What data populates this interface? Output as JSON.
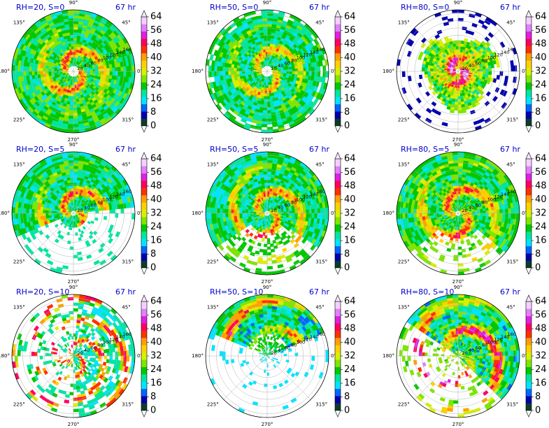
{
  "figure": {
    "panels": [
      {
        "id": "p1",
        "title": "RH=20, S=0",
        "time": "67 hr"
      },
      {
        "id": "p2",
        "title": "RH=50, S=0",
        "time": "67 hr"
      },
      {
        "id": "p3",
        "title": "RH=80, S=0",
        "time": "67 hr"
      },
      {
        "id": "p4",
        "title": "RH=20, S=5",
        "time": "67 hr"
      },
      {
        "id": "p5",
        "title": "RH=50, S=5",
        "time": "67 hr"
      },
      {
        "id": "p6",
        "title": "RH=80, S=5",
        "time": "67 hr"
      },
      {
        "id": "p7",
        "title": "RH=20, S=10",
        "time": "67 hr"
      },
      {
        "id": "p8",
        "title": "RH=50, S=10",
        "time": "67 hr"
      },
      {
        "id": "p9",
        "title": "RH=80, S=10",
        "time": "67 hr"
      }
    ],
    "angle_labels": [
      "0°",
      "45°",
      "90°",
      "135°",
      "180°",
      "225°",
      "270°",
      "315°"
    ],
    "radial_labels": [
      "20",
      "40",
      "60",
      "80",
      "100",
      "120",
      "140",
      "160"
    ],
    "colorbar_ticks": [
      "0",
      "8",
      "16",
      "24",
      "32",
      "40",
      "48",
      "56",
      "64"
    ],
    "colorbar_colors": [
      "#0a3d2a",
      "#0000b0",
      "#0066ff",
      "#00e5ff",
      "#00e6a0",
      "#00c800",
      "#7ee600",
      "#d8f000",
      "#ffd000",
      "#ffa000",
      "#ff3000",
      "#ff0060",
      "#e020e0",
      "#e080ff",
      "#f5d0ff"
    ]
  },
  "chart_data": [
    {
      "type": "heatmap",
      "projection": "polar",
      "title": "RH=20, S=0",
      "time_label": "67 hr",
      "radial_ticks": [
        20,
        40,
        60,
        80,
        100,
        120,
        140,
        160
      ],
      "angle_ticks_deg": [
        0,
        45,
        90,
        135,
        180,
        225,
        270,
        315
      ],
      "colorbar": {
        "min": 0,
        "max": 64,
        "ticks": [
          0,
          8,
          16,
          24,
          32,
          40,
          48,
          56,
          64
        ]
      },
      "coverage": "full disk",
      "eye_radius": 18,
      "peak_value": 48
    },
    {
      "type": "heatmap",
      "projection": "polar",
      "title": "RH=50, S=0",
      "time_label": "67 hr",
      "radial_ticks": [
        20,
        40,
        60,
        80,
        100,
        120,
        140,
        160
      ],
      "angle_ticks_deg": [
        0,
        45,
        90,
        135,
        180,
        225,
        270,
        315
      ],
      "colorbar": {
        "min": 0,
        "max": 64,
        "ticks": [
          0,
          8,
          16,
          24,
          32,
          40,
          48,
          56,
          64
        ]
      },
      "coverage": "full disk",
      "eye_radius": 14,
      "peak_value": 44
    },
    {
      "type": "heatmap",
      "projection": "polar",
      "title": "RH=80, S=0",
      "time_label": "67 hr",
      "radial_ticks": [
        20,
        40,
        60,
        80,
        100,
        120,
        140,
        160
      ],
      "angle_ticks_deg": [
        0,
        45,
        90,
        135,
        180,
        225,
        270,
        315
      ],
      "colorbar": {
        "min": 0,
        "max": 64,
        "ticks": [
          0,
          8,
          16,
          24,
          32,
          40,
          48,
          56,
          64
        ]
      },
      "coverage": "inner ~110 km",
      "eye_radius": 8,
      "peak_value": 60
    },
    {
      "type": "heatmap",
      "projection": "polar",
      "title": "RH=20, S=5",
      "time_label": "67 hr",
      "radial_ticks": [
        20,
        40,
        60,
        80,
        100,
        120,
        140,
        160
      ],
      "angle_ticks_deg": [
        0,
        45,
        90,
        135,
        180,
        225,
        270,
        315
      ],
      "colorbar": {
        "min": 0,
        "max": 64,
        "ticks": [
          0,
          8,
          16,
          24,
          32,
          40,
          48,
          56,
          64
        ]
      },
      "coverage": "northern half, open to south-west",
      "peak_value": 48
    },
    {
      "type": "heatmap",
      "projection": "polar",
      "title": "RH=50, S=5",
      "time_label": "67 hr",
      "radial_ticks": [
        20,
        40,
        60,
        80,
        100,
        120,
        140,
        160
      ],
      "angle_ticks_deg": [
        0,
        45,
        90,
        135,
        180,
        225,
        270,
        315
      ],
      "colorbar": {
        "min": 0,
        "max": 64,
        "ticks": [
          0,
          8,
          16,
          24,
          32,
          40,
          48,
          56,
          64
        ]
      },
      "coverage": "most of disk, gap to south",
      "peak_value": 48
    },
    {
      "type": "heatmap",
      "projection": "polar",
      "title": "RH=80, S=5",
      "time_label": "67 hr",
      "radial_ticks": [
        20,
        40,
        60,
        80,
        100,
        120,
        140,
        160
      ],
      "angle_ticks_deg": [
        0,
        45,
        90,
        135,
        180,
        225,
        270,
        315
      ],
      "colorbar": {
        "min": 0,
        "max": 64,
        "ticks": [
          0,
          8,
          16,
          24,
          32,
          40,
          48,
          56,
          64
        ]
      },
      "coverage": "most of disk",
      "peak_value": 52
    },
    {
      "type": "heatmap",
      "projection": "polar",
      "title": "RH=20, S=10",
      "time_label": "67 hr",
      "radial_ticks": [
        20,
        40,
        60,
        80,
        100,
        120,
        140,
        160
      ],
      "angle_ticks_deg": [
        0,
        45,
        90,
        135,
        180,
        225,
        270,
        315
      ],
      "colorbar": {
        "min": 0,
        "max": 64,
        "ticks": [
          0,
          8,
          16,
          24,
          32,
          40,
          48,
          56,
          64
        ]
      },
      "coverage": "scattered, east side",
      "peak_value": 48
    },
    {
      "type": "heatmap",
      "projection": "polar",
      "title": "RH=50, S=10",
      "time_label": "67 hr",
      "radial_ticks": [
        20,
        40,
        60,
        80,
        100,
        120,
        140,
        160
      ],
      "angle_ticks_deg": [
        0,
        45,
        90,
        135,
        180,
        225,
        270,
        315
      ],
      "colorbar": {
        "min": 0,
        "max": 64,
        "ticks": [
          0,
          8,
          16,
          24,
          32,
          40,
          48,
          56,
          64
        ]
      },
      "coverage": "northern quadrant",
      "peak_value": 52
    },
    {
      "type": "heatmap",
      "projection": "polar",
      "title": "RH=80, S=10",
      "time_label": "67 hr",
      "radial_ticks": [
        20,
        40,
        60,
        80,
        100,
        120,
        140,
        160
      ],
      "angle_ticks_deg": [
        0,
        45,
        90,
        135,
        180,
        225,
        270,
        315
      ],
      "colorbar": {
        "min": 0,
        "max": 64,
        "ticks": [
          0,
          8,
          16,
          24,
          32,
          40,
          48,
          56,
          64
        ]
      },
      "coverage": "north-east half",
      "peak_value": 56
    }
  ]
}
